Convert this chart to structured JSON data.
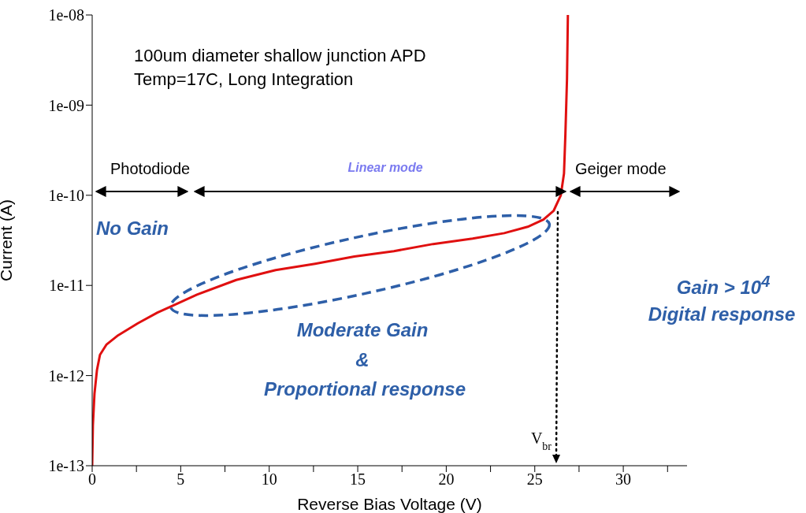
{
  "chart_data": {
    "type": "line",
    "xlabel": "Reverse Bias Voltage (V)",
    "ylabel": "Current (A)",
    "log": "y",
    "grid": false,
    "legend": false,
    "marker": "none",
    "line_style": "solid",
    "xlim": [
      0,
      33.6
    ],
    "xticks": [
      0,
      {
        "value": 2.5,
        "label": null
      },
      5,
      {
        "value": 7.5,
        "label": null
      },
      10,
      {
        "value": 12.5,
        "label": null
      },
      15,
      {
        "value": 17.5,
        "label": null
      },
      20,
      {
        "value": 22.5,
        "label": null
      },
      25,
      {
        "value": 27.5,
        "label": null
      },
      30,
      {
        "value": 32.5,
        "label": null
      }
    ],
    "ylim": [
      1e-13,
      1e-08
    ],
    "yticks": [
      {
        "value": 1e-13,
        "label": "1e-13"
      },
      {
        "value": 1e-12,
        "label": "1e-12"
      },
      {
        "value": 1e-11,
        "label": "1e-11"
      },
      {
        "value": 1e-10,
        "label": "1e-10"
      },
      {
        "value": 1e-09,
        "label": "1e-09"
      },
      {
        "value": 1e-08,
        "label": "1e-08"
      }
    ],
    "x": [
      0,
      0.04,
      0.13,
      0.27,
      0.44,
      0.8,
      1.47,
      2.58,
      3.69,
      4.58,
      5.92,
      8.14,
      10.36,
      12.59,
      14.81,
      17.04,
      19.26,
      21.49,
      23.27,
      24.6,
      25.49,
      26.07,
      26.47,
      26.65,
      26.73,
      26.82,
      26.87
    ],
    "series": [
      {
        "color": "#e01010",
        "values": [
          1e-13,
          2.8e-13,
          6.3e-13,
          1.15e-12,
          1.7e-12,
          2.2e-12,
          2.8e-12,
          3.8e-12,
          5e-12,
          6e-12,
          7.9e-12,
          1.15e-11,
          1.48e-11,
          1.74e-11,
          2.09e-11,
          2.4e-11,
          2.88e-11,
          3.31e-11,
          3.8e-11,
          4.47e-11,
          5.37e-11,
          6.76e-11,
          1e-10,
          1.74e-10,
          4.8e-10,
          1.95e-09,
          1e-08
        ]
      }
    ],
    "annotations": [
      "Photodiode",
      "Linear mode",
      "Geiger mode",
      "100um diameter shallow junction APD",
      "Temp=17C, Long Integration",
      "No Gain",
      "Moderate Gain",
      "&",
      "Proportional response",
      "Gain > 10$^{4}$",
      "Digital response",
      "V$_{br}$"
    ]
  }
}
